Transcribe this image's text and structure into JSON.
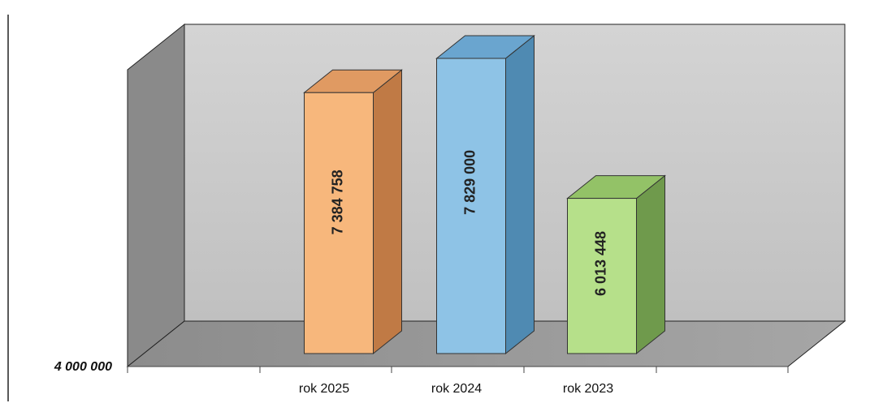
{
  "chart_data": {
    "type": "bar",
    "three_d": true,
    "categories": [
      "rok 2025",
      "rok 2024",
      "rok 2023"
    ],
    "values": [
      7384758,
      7829000,
      6013448
    ],
    "value_labels": [
      "7 384 758",
      "7 829 000",
      "6 013 448"
    ],
    "y_axis_min_label": "4 000 000",
    "ylim": [
      4000000,
      7829000
    ],
    "title": "",
    "xlabel": "",
    "ylabel": "",
    "grid": false,
    "legend": "none"
  },
  "colors": {
    "bars": [
      {
        "front": "#f7b77c",
        "side": "#c07a45",
        "top": "#e09a62"
      },
      {
        "front": "#8ec3e6",
        "side": "#4f8ab2",
        "top": "#6aa5cf"
      },
      {
        "front": "#b6e08a",
        "side": "#6f9a4c",
        "top": "#93c267"
      }
    ],
    "wall": "#c8c8c8",
    "floor": "#9a9a9a",
    "side_wall": "#8a8a8a"
  }
}
